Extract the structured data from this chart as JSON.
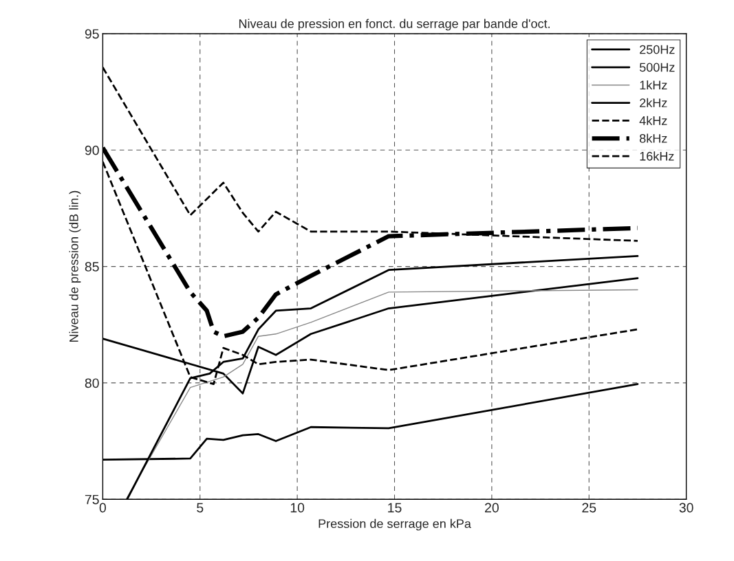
{
  "chart_data": {
    "type": "line",
    "title": "Niveau de pression en fonct. du serrage par bande d'oct.",
    "xlabel": "Pression de serrage en kPa",
    "ylabel": "Niveau de pression (dB lin.)",
    "xlim": [
      0,
      30
    ],
    "ylim": [
      75,
      95
    ],
    "xticks": [
      0,
      5,
      10,
      15,
      20,
      25,
      30
    ],
    "yticks": [
      75,
      80,
      85,
      90,
      95
    ],
    "grid": true,
    "legend": "top right",
    "marker": "none",
    "series": [
      {
        "name": "250Hz",
        "color": "#000000",
        "line_style": "solid",
        "x": [
          0,
          4.5,
          5.35,
          6.2,
          7.2,
          8.0,
          8.9,
          10.7,
          14.7,
          27.5
        ],
        "values": [
          76.7,
          76.75,
          77.6,
          77.55,
          77.75,
          77.8,
          77.5,
          78.1,
          78.05,
          79.95
        ]
      },
      {
        "name": "500Hz",
        "color": "#000000",
        "line_style": "solid",
        "x": [
          0,
          6.2,
          7.2,
          8.0,
          8.9,
          10.7,
          14.7,
          27.5
        ],
        "values": [
          81.9,
          80.4,
          79.55,
          81.55,
          81.2,
          82.1,
          83.2,
          84.5
        ]
      },
      {
        "name": "1kHz",
        "color": "#888888",
        "line_style": "solid",
        "x": [
          1.2,
          4.5,
          6.2,
          7.2,
          8.0,
          8.9,
          10.7,
          14.7,
          27.5
        ],
        "values": [
          75,
          79.8,
          80.25,
          80.8,
          82.0,
          82.1,
          82.6,
          83.9,
          84.0
        ]
      },
      {
        "name": "2kHz",
        "color": "#000000",
        "line_style": "solid",
        "x": [
          1.25,
          4.5,
          5.5,
          6.2,
          7.2,
          8.0,
          8.9,
          10.7,
          14.7,
          27.5
        ],
        "values": [
          75,
          80.2,
          80.4,
          80.9,
          81.05,
          82.3,
          83.1,
          83.2,
          84.85,
          85.45
        ]
      },
      {
        "name": "4kHz",
        "color": "#000000",
        "line_style": "dashed",
        "x": [
          0,
          4.5,
          5.7,
          6.2,
          7.2,
          8.0,
          8.9,
          10.7,
          14.7,
          27.5
        ],
        "values": [
          89.5,
          80.25,
          79.95,
          81.5,
          81.2,
          80.8,
          80.9,
          81.0,
          80.55,
          82.3
        ]
      },
      {
        "name": "8kHz",
        "color": "#000000",
        "line_style": "dashdot",
        "x": [
          0,
          4.5,
          5.35,
          5.7,
          6.2,
          7.2,
          8.0,
          8.9,
          10.7,
          14.7,
          27.5
        ],
        "values": [
          90.1,
          83.9,
          83.1,
          82.2,
          82.0,
          82.2,
          82.8,
          83.8,
          84.6,
          86.3,
          86.65
        ]
      },
      {
        "name": "16kHz",
        "color": "#000000",
        "line_style": "dashed",
        "x": [
          0,
          4.5,
          6.2,
          7.2,
          8.0,
          8.9,
          10.7,
          14.7,
          27.5
        ],
        "values": [
          93.55,
          87.2,
          88.6,
          87.3,
          86.5,
          87.35,
          86.5,
          86.5,
          86.1
        ]
      }
    ]
  }
}
